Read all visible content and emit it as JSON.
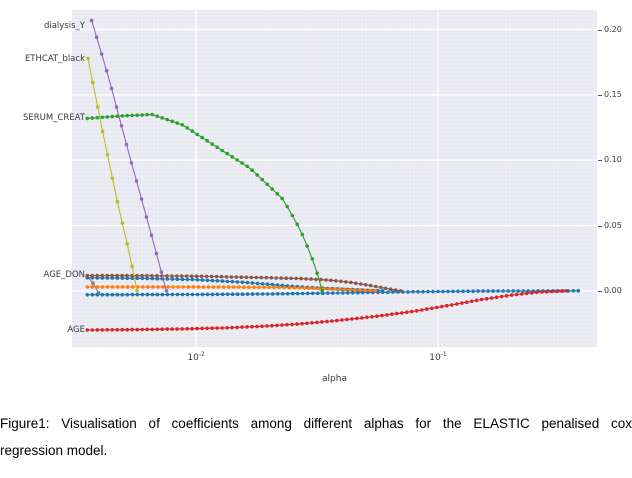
{
  "figure": {
    "caption_line1": "Figure1: Visualisation of coefficients among different alphas for the ELASTIC penalised cox",
    "caption_line2": "regression model."
  },
  "chart_data": {
    "type": "line",
    "title": "",
    "xlabel": "alpha",
    "ylabel": "",
    "x_scale": "log",
    "xlim": [
      0.00307,
      0.454
    ],
    "ylim": [
      -0.043,
      0.215
    ],
    "plot_background": "#e9eaf1",
    "grid_color": "#ffffff",
    "legend_position": "left-margin-inline-labels",
    "x_ticks": [
      {
        "base": "10",
        "exp": "-2",
        "value": 0.01
      },
      {
        "base": "10",
        "exp": "-1",
        "value": 0.1
      }
    ],
    "y_ticks": [
      {
        "label": "0.20",
        "value": 0.2
      },
      {
        "label": "0.15",
        "value": 0.15
      },
      {
        "label": "0.10",
        "value": 0.1
      },
      {
        "label": "0.05",
        "value": 0.05
      },
      {
        "label": "0.00",
        "value": 0.0
      }
    ],
    "minor_x": [
      0.004,
      0.005,
      0.006,
      0.007,
      0.008,
      0.009,
      0.02,
      0.03,
      0.04,
      0.05,
      0.06,
      0.07,
      0.08,
      0.09,
      0.2,
      0.3,
      0.4
    ],
    "series": [
      {
        "id": "feature-grey",
        "color": "#7f7f7f",
        "points": [
          [
            0.00355,
            0.011
          ],
          [
            0.0038,
            0.0045
          ],
          [
            0.00395,
            -0.0015
          ]
        ]
      },
      {
        "id": "feature-blue",
        "color": "#1f77b4",
        "points": [
          [
            0.00355,
            0.01
          ],
          [
            0.006,
            0.0096
          ],
          [
            0.01,
            0.0085
          ],
          [
            0.015,
            0.0068
          ],
          [
            0.02,
            0.005
          ],
          [
            0.025,
            0.0035
          ],
          [
            0.03,
            0.0024
          ],
          [
            0.04,
            0.0013
          ],
          [
            0.05,
            0.0005
          ],
          [
            0.059,
            0.0
          ]
        ]
      },
      {
        "id": "zero-cluster",
        "color": "#1f77b4",
        "points": [
          [
            0.00355,
            -0.003
          ],
          [
            0.01,
            -0.0028
          ],
          [
            0.02,
            -0.0024
          ],
          [
            0.04,
            -0.0016
          ],
          [
            0.08,
            -0.0007
          ],
          [
            0.15,
            -0.0002
          ],
          [
            0.38,
            0.0
          ]
        ]
      },
      {
        "id": "feature-orange",
        "color": "#ff7f0e",
        "points": [
          [
            0.00355,
            0.003
          ],
          [
            0.01,
            0.003
          ],
          [
            0.02,
            0.0027
          ],
          [
            0.03,
            0.0021
          ],
          [
            0.04,
            0.0012
          ],
          [
            0.048,
            0.0005
          ],
          [
            0.055,
            0.0
          ]
        ]
      },
      {
        "id": "AGE_DON",
        "label": "AGE_DON",
        "color": "#8c564b",
        "points": [
          [
            0.00355,
            0.0117
          ],
          [
            0.006,
            0.0116
          ],
          [
            0.01,
            0.0112
          ],
          [
            0.015,
            0.0105
          ],
          [
            0.02,
            0.01
          ],
          [
            0.027,
            0.0094
          ],
          [
            0.035,
            0.0083
          ],
          [
            0.043,
            0.0066
          ],
          [
            0.052,
            0.0042
          ],
          [
            0.058,
            0.0026
          ],
          [
            0.064,
            0.0012
          ],
          [
            0.07,
            0.0
          ]
        ]
      },
      {
        "id": "AGE",
        "label": "AGE",
        "color": "#d62728",
        "points": [
          [
            0.00355,
            -0.03
          ],
          [
            0.0055,
            -0.0297
          ],
          [
            0.0085,
            -0.0292
          ],
          [
            0.013,
            -0.0284
          ],
          [
            0.019,
            -0.0271
          ],
          [
            0.027,
            -0.0253
          ],
          [
            0.038,
            -0.0228
          ],
          [
            0.055,
            -0.0196
          ],
          [
            0.08,
            -0.0156
          ],
          [
            0.112,
            -0.011
          ],
          [
            0.15,
            -0.0068
          ],
          [
            0.2,
            -0.0033
          ],
          [
            0.26,
            -0.001
          ],
          [
            0.34,
            0.0
          ]
        ]
      },
      {
        "id": "SERUM_CREAT",
        "label": "SERUM_CREAT",
        "color": "#2ca02c",
        "points": [
          [
            0.00355,
            0.132
          ],
          [
            0.005,
            0.134
          ],
          [
            0.0066,
            0.135
          ],
          [
            0.0088,
            0.127
          ],
          [
            0.0122,
            0.11
          ],
          [
            0.0167,
            0.094
          ],
          [
            0.0229,
            0.07
          ],
          [
            0.0269,
            0.047
          ],
          [
            0.0296,
            0.029
          ],
          [
            0.0316,
            0.014
          ],
          [
            0.0332,
            0.0
          ]
        ]
      },
      {
        "id": "dialysis_Y",
        "label": "dialysis_Y",
        "color": "#9467bd",
        "points": [
          [
            0.0037,
            0.207
          ],
          [
            0.00437,
            0.162
          ],
          [
            0.00528,
            0.105
          ],
          [
            0.00642,
            0.048
          ],
          [
            0.00706,
            0.02
          ],
          [
            0.00754,
            0.0
          ]
        ]
      },
      {
        "id": "ETHCAT_black",
        "label": "ETHCAT_black",
        "color": "#bcbd22",
        "points": [
          [
            0.00357,
            0.178
          ],
          [
            0.00412,
            0.121
          ],
          [
            0.00478,
            0.064
          ],
          [
            0.00533,
            0.027
          ],
          [
            0.0057,
            0.0
          ]
        ]
      }
    ]
  }
}
